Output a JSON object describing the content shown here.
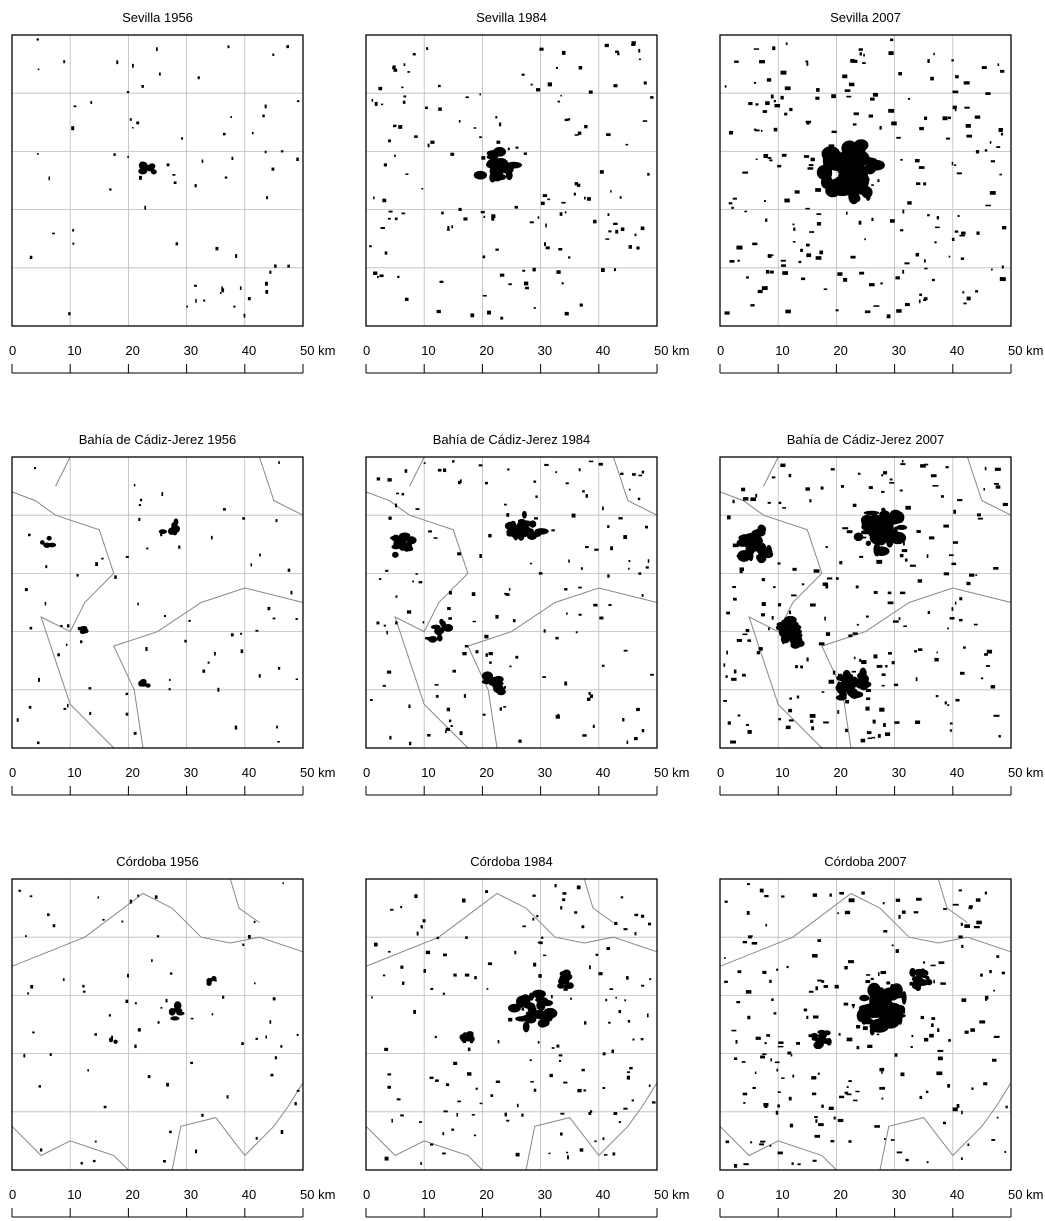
{
  "panels": [
    {
      "title": "Sevilla 1956"
    },
    {
      "title": "Sevilla 1984"
    },
    {
      "title": "Sevilla 2007"
    },
    {
      "title": "Bahía de Cádiz-Jerez 1956"
    },
    {
      "title": "Bahía de Cádiz-Jerez 1984"
    },
    {
      "title": "Bahía de Cádiz-Jerez 2007"
    },
    {
      "title": "Córdoba 1956"
    },
    {
      "title": "Córdoba 1984"
    },
    {
      "title": "Córdoba 2007"
    }
  ],
  "scale": {
    "labels": [
      "0",
      "10",
      "20",
      "30",
      "40",
      "50 km"
    ]
  }
}
